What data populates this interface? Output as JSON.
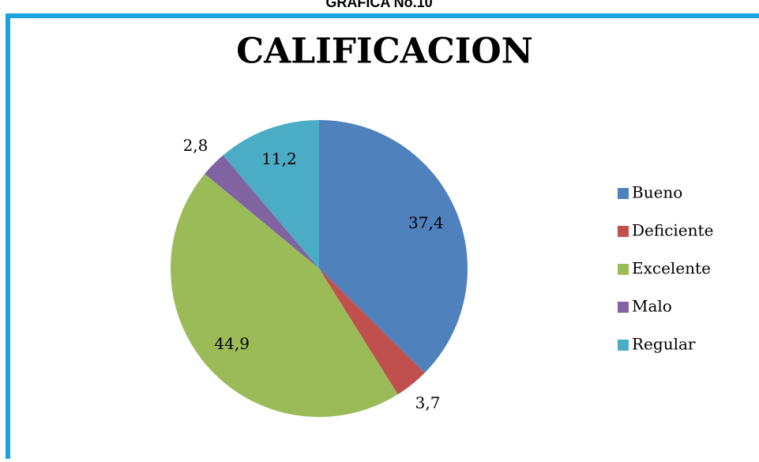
{
  "caption": "GRAFICA No.10",
  "chart_data": {
    "type": "pie",
    "title": "CALIFICACION",
    "categories": [
      "Bueno",
      "Deficiente",
      "Excelente",
      "Malo",
      "Regular"
    ],
    "values": [
      37.4,
      3.7,
      44.9,
      2.8,
      11.2
    ],
    "value_labels": [
      "37,4",
      "3,7",
      "44,9",
      "2,8",
      "11,2"
    ],
    "colors": [
      "#4f81bd",
      "#c0504d",
      "#9bbb59",
      "#8064a2",
      "#4bacc6"
    ],
    "legend": "right"
  }
}
